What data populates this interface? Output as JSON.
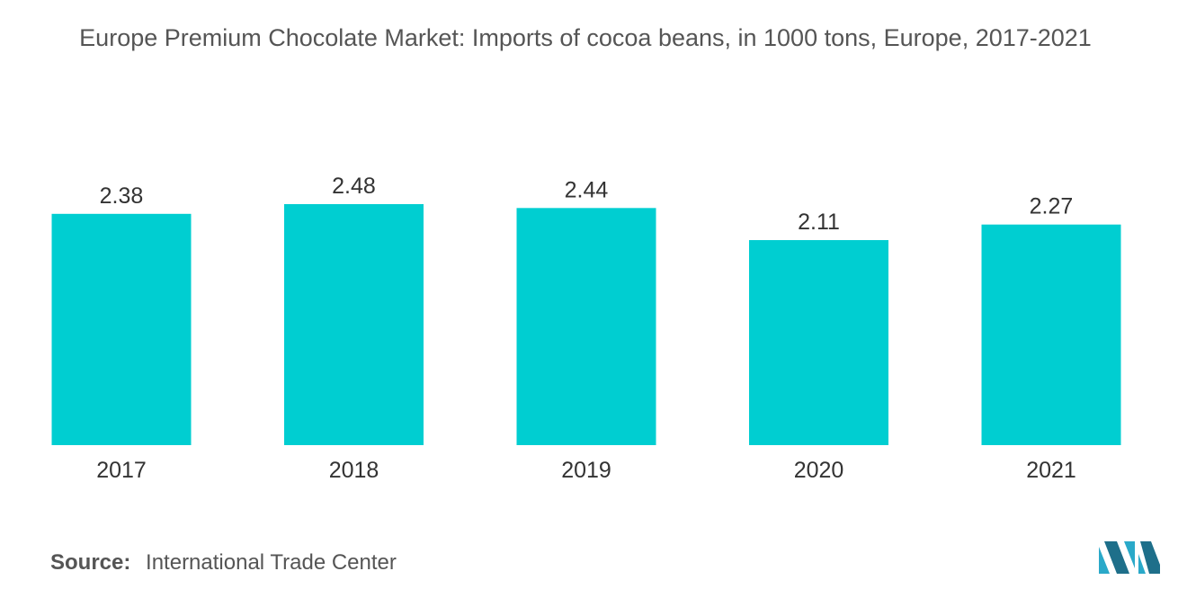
{
  "chart_data": {
    "type": "bar",
    "title": "Europe Premium Chocolate Market: Imports of cocoa beans, in 1000 tons, Europe, 2017-2021",
    "categories": [
      "2017",
      "2018",
      "2019",
      "2020",
      "2021"
    ],
    "values": [
      2.38,
      2.48,
      2.44,
      2.11,
      2.27
    ],
    "value_labels": [
      "2.38",
      "2.48",
      "2.44",
      "2.11",
      "2.27"
    ],
    "xlabel": "",
    "ylabel": "",
    "ylim": [
      0,
      2.48
    ],
    "grid": false,
    "legend": "none",
    "bar_color": "#00CED1"
  },
  "source": {
    "key": "Source:",
    "text": "International Trade Center"
  },
  "logo": {
    "icon": "mordor-intelligence-logo",
    "color": "#2AA9C9"
  }
}
